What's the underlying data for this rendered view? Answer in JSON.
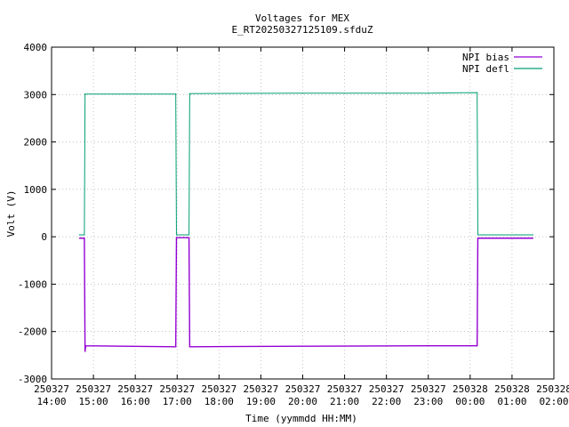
{
  "chart_data": {
    "type": "line",
    "title": "Voltages for MEX",
    "subtitle": "E_RT20250327125109.sfduZ",
    "xlabel": "Time (yymmdd HH:MM)",
    "ylabel": "Volt (V)",
    "xlim": [
      "2025-03-27 14:00",
      "2025-03-28 02:00"
    ],
    "ylim": [
      -3000,
      4000
    ],
    "grid": true,
    "legend_position": "top-right",
    "y_ticks": [
      "4000",
      "3000",
      "2000",
      "1000",
      "0",
      "-1000",
      "-2000",
      "-3000"
    ],
    "x_ticks": [
      {
        "date": "250327",
        "time": "14:00"
      },
      {
        "date": "250327",
        "time": "15:00"
      },
      {
        "date": "250327",
        "time": "16:00"
      },
      {
        "date": "250327",
        "time": "17:00"
      },
      {
        "date": "250327",
        "time": "18:00"
      },
      {
        "date": "250327",
        "time": "19:00"
      },
      {
        "date": "250327",
        "time": "20:00"
      },
      {
        "date": "250327",
        "time": "21:00"
      },
      {
        "date": "250327",
        "time": "22:00"
      },
      {
        "date": "250327",
        "time": "23:00"
      },
      {
        "date": "250328",
        "time": "00:00"
      },
      {
        "date": "250328",
        "time": "01:00"
      },
      {
        "date": "250328",
        "time": "02:00"
      }
    ],
    "series": [
      {
        "name": "NPI bias",
        "color": "#9400d3",
        "points": [
          [
            "2025-03-27 14:40",
            -30
          ],
          [
            "2025-03-27 14:47",
            -30
          ],
          [
            "2025-03-27 14:48",
            -2420
          ],
          [
            "2025-03-27 14:49",
            -2300
          ],
          [
            "2025-03-27 16:58",
            -2320
          ],
          [
            "2025-03-27 16:59",
            -20
          ],
          [
            "2025-03-27 17:17",
            -20
          ],
          [
            "2025-03-27 17:18",
            -2320
          ],
          [
            "2025-03-27 20:00",
            -2310
          ],
          [
            "2025-03-27 23:00",
            -2300
          ],
          [
            "2025-03-28 00:10",
            -2300
          ],
          [
            "2025-03-28 00:11",
            -30
          ],
          [
            "2025-03-28 01:30",
            -30
          ]
        ]
      },
      {
        "name": "NPI defl",
        "color": "#009e73",
        "points": [
          [
            "2025-03-27 14:40",
            40
          ],
          [
            "2025-03-27 14:47",
            40
          ],
          [
            "2025-03-27 14:48",
            3010
          ],
          [
            "2025-03-27 16:58",
            3010
          ],
          [
            "2025-03-27 16:59",
            40
          ],
          [
            "2025-03-27 17:17",
            40
          ],
          [
            "2025-03-27 17:18",
            3020
          ],
          [
            "2025-03-27 20:00",
            3030
          ],
          [
            "2025-03-27 23:00",
            3030
          ],
          [
            "2025-03-28 00:10",
            3040
          ],
          [
            "2025-03-28 00:11",
            40
          ],
          [
            "2025-03-28 01:30",
            40
          ]
        ]
      }
    ]
  }
}
